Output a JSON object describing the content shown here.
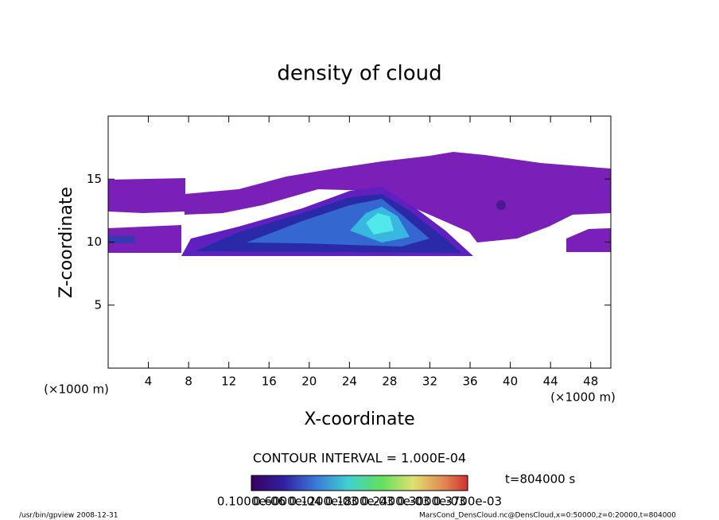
{
  "chart_data": {
    "type": "contour",
    "title": "density of cloud",
    "x_label": "X-coordinate",
    "y_label": "Z-coordinate",
    "x_unit": "(×1000 m)",
    "y_unit": "(×1000 m)",
    "xlim": [
      0,
      50
    ],
    "xticks": [
      4,
      8,
      12,
      16,
      20,
      24,
      28,
      32,
      36,
      40,
      44,
      48
    ],
    "ylim": [
      0,
      20
    ],
    "yticks": [
      5,
      10,
      15
    ],
    "contour_interval": "CONTOUR INTERVAL = 1.000E-04",
    "time_label": "t=804000 s",
    "colorbar_labels": [
      "0.1000e-06",
      "0.6000e-04",
      "0.1200e-03",
      "0.1800e-03",
      "0.2400e-03",
      "0.3000e-03",
      "0.3700e-03"
    ],
    "footer_left": "/usr/bin/gpview   2008-12-31",
    "footer_right": "MarsCond_DensCloud.nc@DensCloud,x=0:50000,z=0:20000,t=804000"
  }
}
